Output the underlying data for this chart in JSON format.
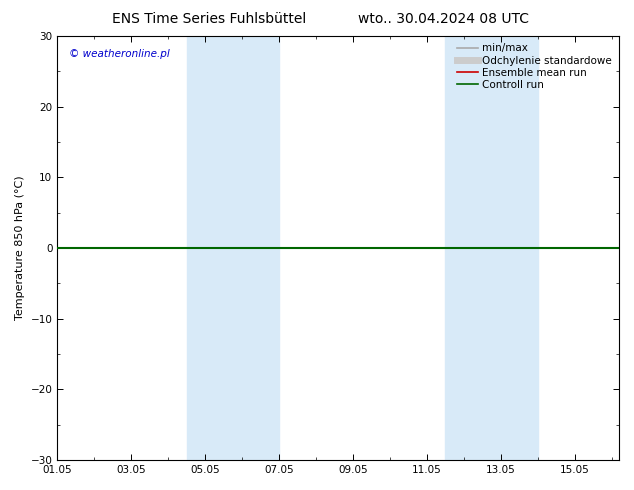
{
  "title_left": "ENS Time Series Fuhlsbüttel",
  "title_right": "wto.. 30.04.2024 08 UTC",
  "ylabel": "Temperature 850 hPa (°C)",
  "copyright": "© weatheronline.pl",
  "ylim": [
    -30,
    30
  ],
  "yticks": [
    -30,
    -20,
    -10,
    0,
    10,
    20,
    30
  ],
  "xtick_labels": [
    "01.05",
    "03.05",
    "05.05",
    "07.05",
    "09.05",
    "11.05",
    "13.05",
    "15.05"
  ],
  "xtick_positions": [
    0,
    2,
    4,
    6,
    8,
    10,
    12,
    14
  ],
  "xlim": [
    0,
    15.2
  ],
  "shaded_bands": [
    {
      "x_start": 3.5,
      "x_end": 5.5,
      "color": "#d8eaf8",
      "alpha": 1.0
    },
    {
      "x_start": 5.5,
      "x_end": 6.0,
      "color": "#d8eaf8",
      "alpha": 1.0
    },
    {
      "x_start": 10.5,
      "x_end": 12.0,
      "color": "#d8eaf8",
      "alpha": 1.0
    },
    {
      "x_start": 12.0,
      "x_end": 13.0,
      "color": "#d8eaf8",
      "alpha": 1.0
    }
  ],
  "hline_y": 0,
  "hline_color": "#006600",
  "hline_lw": 1.5,
  "legend_entries": [
    {
      "label": "min/max",
      "color": "#aaaaaa",
      "lw": 1.2
    },
    {
      "label": "Odchylenie standardowe",
      "color": "#cccccc",
      "lw": 5
    },
    {
      "label": "Ensemble mean run",
      "color": "#cc0000",
      "lw": 1.2
    },
    {
      "label": "Controll run",
      "color": "#006600",
      "lw": 1.2
    }
  ],
  "background_color": "#ffffff",
  "plot_bg_color": "#ffffff",
  "title_fontsize": 10,
  "label_fontsize": 8,
  "tick_fontsize": 7.5,
  "legend_fontsize": 7.5,
  "copyright_color": "#0000cc",
  "copyright_fontsize": 7.5
}
